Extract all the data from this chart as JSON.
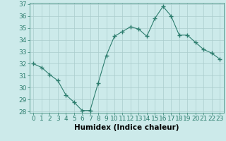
{
  "x": [
    0,
    1,
    2,
    3,
    4,
    5,
    6,
    7,
    8,
    9,
    10,
    11,
    12,
    13,
    14,
    15,
    16,
    17,
    18,
    19,
    20,
    21,
    22,
    23
  ],
  "y": [
    32.0,
    31.7,
    31.1,
    30.6,
    29.4,
    28.8,
    28.1,
    28.1,
    30.4,
    32.7,
    34.3,
    34.7,
    35.1,
    34.9,
    34.3,
    35.8,
    36.8,
    36.0,
    34.4,
    34.4,
    33.8,
    33.2,
    32.9,
    32.4
  ],
  "line_color": "#2d7d6e",
  "marker": "+",
  "marker_size": 4,
  "bg_color": "#cceaea",
  "grid_color": "#aacccc",
  "xlabel": "Humidex (Indice chaleur)",
  "ylim": [
    28,
    37
  ],
  "xlim": [
    -0.5,
    23.5
  ],
  "yticks": [
    28,
    29,
    30,
    31,
    32,
    33,
    34,
    35,
    36,
    37
  ],
  "xticks": [
    0,
    1,
    2,
    3,
    4,
    5,
    6,
    7,
    8,
    9,
    10,
    11,
    12,
    13,
    14,
    15,
    16,
    17,
    18,
    19,
    20,
    21,
    22,
    23
  ],
  "tick_fontsize": 6.5,
  "xlabel_fontsize": 7.5
}
